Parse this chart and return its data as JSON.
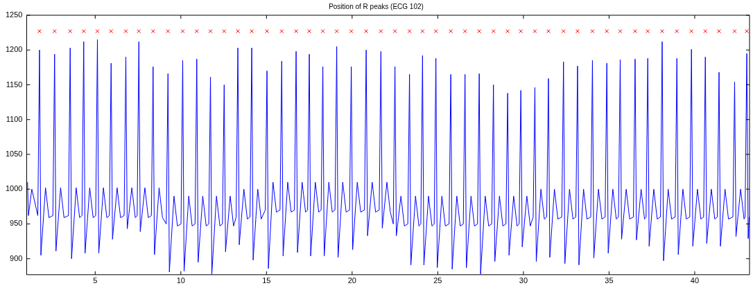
{
  "chart_data": {
    "type": "line",
    "title": "Position of R peaks (ECG 102)",
    "xlim": [
      1,
      43.2
    ],
    "ylim": [
      877,
      1250
    ],
    "xticks": [
      5,
      10,
      15,
      20,
      25,
      30,
      35,
      40
    ],
    "yticks": [
      900,
      950,
      1000,
      1050,
      1100,
      1150,
      1200,
      1250
    ],
    "grid": false,
    "legend": false,
    "series": [
      {
        "type": "line",
        "color": "#0000ff",
        "marker": "none",
        "x": [
          1.05,
          1.1,
          1.3,
          1.65,
          1.75,
          1.83,
          2.1,
          2.3,
          2.53,
          2.63,
          2.71,
          2.98,
          3.18,
          3.44,
          3.54,
          3.62,
          3.89,
          4.09,
          4.23,
          4.33,
          4.41,
          4.68,
          4.88,
          5.03,
          5.13,
          5.21,
          5.48,
          5.68,
          5.83,
          5.93,
          6.01,
          6.28,
          6.48,
          6.69,
          6.79,
          6.87,
          7.14,
          7.34,
          7.45,
          7.55,
          7.63,
          7.9,
          8.1,
          8.28,
          8.38,
          8.46,
          8.73,
          8.93,
          9.15,
          9.25,
          9.33,
          9.6,
          9.8,
          10.01,
          10.11,
          10.19,
          10.46,
          10.66,
          10.83,
          10.93,
          11.01,
          11.28,
          11.48,
          11.63,
          11.73,
          11.81,
          12.08,
          12.28,
          12.43,
          12.53,
          12.61,
          12.88,
          13.08,
          13.23,
          13.33,
          13.41,
          13.68,
          13.88,
          14.04,
          14.14,
          14.22,
          14.49,
          14.69,
          14.93,
          15.03,
          15.11,
          15.38,
          15.58,
          15.79,
          15.89,
          15.97,
          16.24,
          16.44,
          16.63,
          16.73,
          16.81,
          17.08,
          17.28,
          17.4,
          17.5,
          17.58,
          17.85,
          18.05,
          18.19,
          18.29,
          18.37,
          18.64,
          18.84,
          19.0,
          19.1,
          19.18,
          19.45,
          19.65,
          19.85,
          19.95,
          20.03,
          20.3,
          20.5,
          20.72,
          20.82,
          20.9,
          21.17,
          21.37,
          21.58,
          21.68,
          21.76,
          22.03,
          22.23,
          22.4,
          22.5,
          22.58,
          22.85,
          23.05,
          23.25,
          23.35,
          23.43,
          23.7,
          23.9,
          24.01,
          24.11,
          24.19,
          24.46,
          24.66,
          24.79,
          24.89,
          24.97,
          25.24,
          25.44,
          25.66,
          25.76,
          25.84,
          26.11,
          26.31,
          26.49,
          26.59,
          26.67,
          26.94,
          27.14,
          27.32,
          27.42,
          27.5,
          27.77,
          27.97,
          28.15,
          28.25,
          28.33,
          28.6,
          28.8,
          28.98,
          29.08,
          29.16,
          29.43,
          29.63,
          29.75,
          29.85,
          29.93,
          30.2,
          30.4,
          30.57,
          30.67,
          30.75,
          31.02,
          31.22,
          31.36,
          31.46,
          31.54,
          31.81,
          32.01,
          32.24,
          32.34,
          32.42,
          32.69,
          32.89,
          33.06,
          33.16,
          33.24,
          33.51,
          33.71,
          33.93,
          34.03,
          34.11,
          34.38,
          34.58,
          34.77,
          34.87,
          34.95,
          35.22,
          35.42,
          35.55,
          35.65,
          35.73,
          36.0,
          36.2,
          36.42,
          36.52,
          36.6,
          36.87,
          37.07,
          37.16,
          37.26,
          37.34,
          37.61,
          37.81,
          38.0,
          38.1,
          38.18,
          38.45,
          38.65,
          38.86,
          38.96,
          39.04,
          39.31,
          39.51,
          39.71,
          39.81,
          39.89,
          40.16,
          40.36,
          40.52,
          40.62,
          40.7,
          40.97,
          41.17,
          41.32,
          41.42,
          41.5,
          41.77,
          41.97,
          42.23,
          42.33,
          42.41,
          42.68,
          42.88,
          42.94,
          43.04,
          43.12,
          43.18
        ],
        "values": [
          1010,
          962,
          1000,
          962,
          1200,
          905,
          1002,
          959,
          962,
          1194,
          911,
          1002,
          959,
          962,
          1203,
          900,
          1002,
          959,
          962,
          1212,
          908,
          1002,
          959,
          962,
          1215,
          908,
          1002,
          959,
          962,
          1181,
          928,
          1002,
          959,
          962,
          1190,
          943,
          1002,
          959,
          962,
          1212,
          939,
          1002,
          959,
          962,
          1176,
          906,
          1002,
          959,
          950,
          1166,
          881,
          990,
          947,
          950,
          1185,
          882,
          990,
          947,
          950,
          1187,
          895,
          990,
          947,
          950,
          1161,
          878,
          990,
          947,
          950,
          1150,
          910,
          990,
          947,
          960,
          1203,
          920,
          1000,
          957,
          960,
          1203,
          898,
          1000,
          957,
          970,
          1170,
          886,
          1010,
          967,
          970,
          1184,
          904,
          1010,
          967,
          970,
          1198,
          909,
          1010,
          967,
          970,
          1194,
          904,
          1010,
          967,
          970,
          1176,
          904,
          1010,
          967,
          970,
          1205,
          902,
          1010,
          967,
          970,
          1176,
          913,
          1010,
          967,
          970,
          1200,
          933,
          1010,
          967,
          970,
          1198,
          944,
          1010,
          967,
          950,
          1176,
          933,
          990,
          947,
          950,
          1165,
          891,
          990,
          947,
          950,
          1192,
          891,
          990,
          947,
          950,
          1188,
          887,
          990,
          947,
          950,
          1165,
          885,
          990,
          947,
          950,
          1165,
          887,
          990,
          947,
          950,
          1166,
          878,
          990,
          947,
          950,
          1150,
          896,
          990,
          947,
          950,
          1138,
          905,
          990,
          947,
          950,
          1142,
          917,
          990,
          947,
          960,
          1146,
          896,
          1000,
          957,
          960,
          1159,
          902,
          1000,
          957,
          960,
          1183,
          893,
          1000,
          957,
          960,
          1177,
          891,
          1000,
          957,
          960,
          1185,
          901,
          1000,
          957,
          960,
          1181,
          908,
          1000,
          957,
          960,
          1186,
          928,
          1000,
          957,
          960,
          1187,
          927,
          1000,
          957,
          960,
          1188,
          918,
          1000,
          957,
          960,
          1212,
          897,
          1000,
          957,
          960,
          1188,
          906,
          1000,
          957,
          960,
          1201,
          918,
          1000,
          957,
          960,
          1190,
          922,
          1000,
          957,
          960,
          1168,
          918,
          1000,
          957,
          960,
          1154,
          932,
          1000,
          957,
          960,
          1195,
          929,
          960
        ]
      },
      {
        "type": "scatter",
        "color": "#ff0000",
        "marker": "cross",
        "x": [
          1.75,
          2.63,
          3.54,
          4.33,
          5.13,
          5.93,
          6.79,
          7.55,
          8.38,
          9.25,
          10.11,
          10.93,
          11.73,
          12.53,
          13.33,
          14.14,
          15.03,
          15.89,
          16.73,
          17.5,
          18.29,
          19.1,
          19.95,
          20.82,
          21.68,
          22.5,
          23.35,
          24.11,
          24.89,
          25.76,
          26.59,
          27.42,
          28.25,
          29.08,
          29.85,
          30.67,
          31.46,
          32.34,
          33.16,
          34.03,
          34.87,
          35.65,
          36.52,
          37.26,
          38.1,
          38.96,
          39.81,
          40.62,
          41.42,
          42.33,
          43.04
        ],
        "values": [
          1227,
          1227,
          1227,
          1227,
          1227,
          1227,
          1227,
          1227,
          1227,
          1227,
          1227,
          1227,
          1227,
          1227,
          1227,
          1227,
          1227,
          1227,
          1227,
          1227,
          1227,
          1227,
          1227,
          1227,
          1227,
          1227,
          1227,
          1227,
          1227,
          1227,
          1227,
          1227,
          1227,
          1227,
          1227,
          1227,
          1227,
          1227,
          1227,
          1227,
          1227,
          1227,
          1227,
          1227,
          1227,
          1227,
          1227,
          1227,
          1227,
          1227,
          1227
        ]
      }
    ]
  }
}
